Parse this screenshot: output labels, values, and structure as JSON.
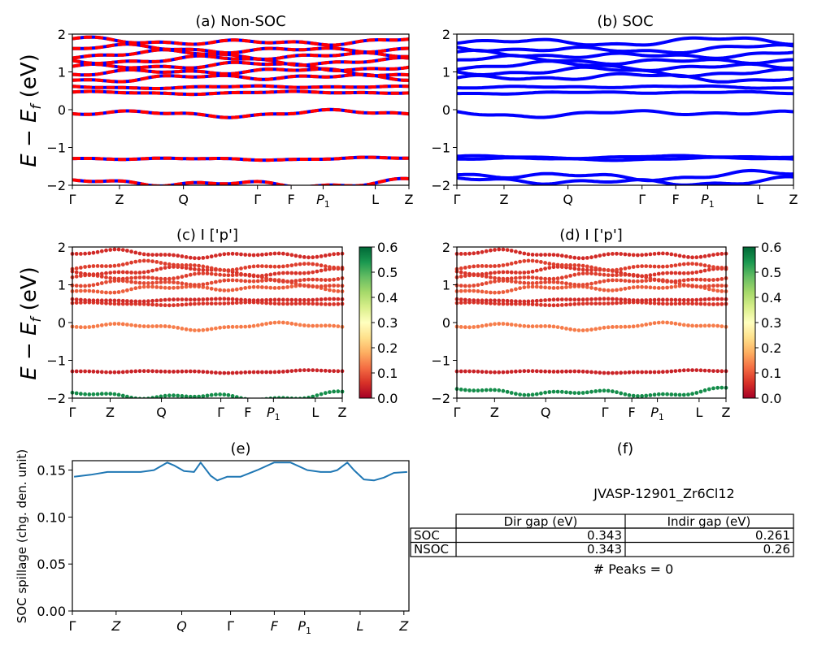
{
  "figure": {
    "ylabel_band": "E − E",
    "ylabel_band_sub": "f",
    "ylabel_band_unit": " (eV)",
    "kpath": [
      "Γ",
      "Z",
      "Q",
      "Γ",
      "F",
      "P1",
      "L",
      "Z"
    ]
  },
  "chart_data": [
    {
      "id": "a",
      "type": "line",
      "title": "(a) Non-SOC",
      "ylim": [
        -2,
        2
      ],
      "yticks": [
        -2,
        -1,
        0,
        1,
        2
      ],
      "xticks": [
        "Γ",
        "Z",
        "Q",
        "Γ",
        "F",
        "P1",
        "L",
        "Z"
      ],
      "series_colors": [
        "#0000ff",
        "#ff0000"
      ],
      "style": "blue bands overlaid with red dashed bands",
      "band_levels": [
        -1.95,
        -1.3,
        -0.1,
        0.45,
        0.6,
        0.85,
        1.0,
        1.15,
        1.3,
        1.45,
        1.6,
        1.8
      ]
    },
    {
      "id": "b",
      "type": "line",
      "title": "(b) SOC",
      "ylim": [
        -2,
        2
      ],
      "yticks": [
        -2,
        -1,
        0,
        1,
        2
      ],
      "xticks": [
        "Γ",
        "Z",
        "Q",
        "Γ",
        "F",
        "P1",
        "L",
        "Z"
      ],
      "series_colors": [
        "#0000ff"
      ],
      "band_levels": [
        -1.9,
        -1.75,
        -1.3,
        -1.25,
        -0.1,
        0.45,
        0.6,
        0.85,
        1.0,
        1.15,
        1.3,
        1.45,
        1.6,
        1.8
      ]
    },
    {
      "id": "c",
      "type": "scatter",
      "title": "(c)  I ['p']",
      "ylim": [
        -2,
        2
      ],
      "yticks": [
        -2,
        -1,
        0,
        1,
        2
      ],
      "xticks": [
        "Γ",
        "Z",
        "Q",
        "Γ",
        "F",
        "P1",
        "L",
        "Z"
      ],
      "colorbar": {
        "min": 0.0,
        "max": 0.6,
        "ticks": [
          "0.0",
          "0.1",
          "0.2",
          "0.3",
          "0.4",
          "0.5",
          "0.6"
        ],
        "colormap": "RdYlGn"
      },
      "band_levels": [
        -1.95,
        -1.3,
        -0.1,
        0.5,
        0.6,
        0.9,
        1.05,
        1.2,
        1.35,
        1.5,
        1.8
      ],
      "band_values": [
        0.55,
        0.04,
        0.13,
        0.06,
        0.05,
        0.1,
        0.08,
        0.07,
        0.06,
        0.07,
        0.05
      ]
    },
    {
      "id": "d",
      "type": "scatter",
      "title": "(d) I ['p']",
      "ylim": [
        -2,
        2
      ],
      "yticks": [
        -2,
        -1,
        0,
        1,
        2
      ],
      "xticks": [
        "Γ",
        "Z",
        "Q",
        "Γ",
        "F",
        "P1",
        "L",
        "Z"
      ],
      "colorbar": {
        "min": 0.0,
        "max": 0.6,
        "ticks": [
          "0.0",
          "0.1",
          "0.2",
          "0.3",
          "0.4",
          "0.5",
          "0.6"
        ],
        "colormap": "RdYlGn"
      },
      "band_levels": [
        -1.85,
        -1.3,
        -0.1,
        0.5,
        0.6,
        0.9,
        1.05,
        1.2,
        1.35,
        1.5,
        1.8
      ],
      "band_values": [
        0.55,
        0.04,
        0.13,
        0.06,
        0.05,
        0.1,
        0.08,
        0.07,
        0.06,
        0.07,
        0.05
      ]
    },
    {
      "id": "e",
      "type": "line",
      "title": "(e)",
      "ylabel": "SOC spillage (chg. den. unit)",
      "ylim": [
        0.0,
        0.16
      ],
      "yticks": [
        "0.00",
        "0.05",
        "0.10",
        "0.15"
      ],
      "xticks": [
        "Γ",
        "Z",
        "Q",
        "Γ",
        "F",
        "P1",
        "L",
        "Z"
      ],
      "series_colors": [
        "#1f77b4"
      ],
      "x": [
        0,
        0.05,
        0.1,
        0.15,
        0.2,
        0.24,
        0.28,
        0.3,
        0.33,
        0.36,
        0.38,
        0.41,
        0.43,
        0.46,
        0.5,
        0.55,
        0.6,
        0.65,
        0.7,
        0.74,
        0.77,
        0.79,
        0.82,
        0.84,
        0.87,
        0.9,
        0.93,
        0.96,
        1.0
      ],
      "y": [
        0.143,
        0.145,
        0.148,
        0.148,
        0.148,
        0.15,
        0.158,
        0.155,
        0.149,
        0.148,
        0.158,
        0.144,
        0.139,
        0.143,
        0.143,
        0.15,
        0.158,
        0.158,
        0.15,
        0.148,
        0.148,
        0.15,
        0.158,
        0.15,
        0.14,
        0.139,
        0.142,
        0.147,
        0.148
      ]
    },
    {
      "id": "f",
      "type": "table",
      "title": "(f)",
      "caption": "JVASP-12901_Zr6Cl12",
      "columns": [
        "Dir gap (eV)",
        "Indir gap (eV)"
      ],
      "rows": [
        {
          "label": "SOC",
          "values": [
            "0.343",
            "0.261"
          ]
        },
        {
          "label": "NSOC",
          "values": [
            "0.343",
            "0.26"
          ]
        }
      ],
      "footer": "# Peaks = 0"
    }
  ]
}
